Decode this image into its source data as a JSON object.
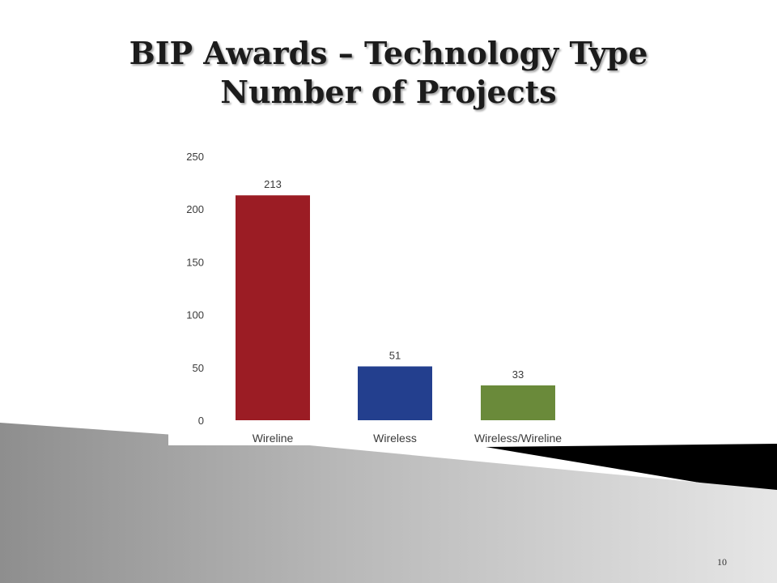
{
  "slide": {
    "title_line1": "BIP Awards – Technology Type",
    "title_line2": "Number of Projects",
    "page_number": "10"
  },
  "chart_data": {
    "type": "bar",
    "categories": [
      "Wireline",
      "Wireless",
      "Wireless/Wireline"
    ],
    "values": [
      213,
      51,
      33
    ],
    "data_labels": [
      "213",
      "51",
      "33"
    ],
    "title": "",
    "xlabel": "",
    "ylabel": "",
    "ylim": [
      0,
      250
    ],
    "yticks": [
      0,
      50,
      100,
      150,
      200,
      250
    ],
    "grid": false,
    "legend": "none",
    "colors": [
      "#9b1c24",
      "#233f8e",
      "#6a8a3a"
    ]
  }
}
